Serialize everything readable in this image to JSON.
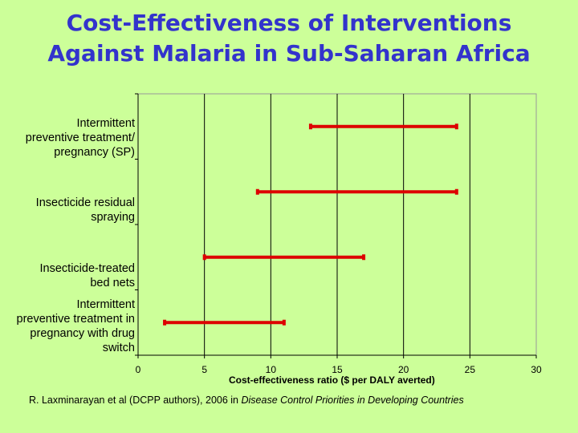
{
  "slide": {
    "title_line1": "Cost-Effectiveness of Interventions",
    "title_line2": "Against Malaria in Sub-Saharan Africa",
    "citation_pre": "R. Laxminarayan et al (DCPP authors), 2006 in ",
    "citation_source": "Disease Control Priorities in Developing Countries"
  },
  "colors": {
    "background": "#ccff99",
    "title": "#3333cc",
    "bar": "#dd0000"
  },
  "chart_data": {
    "type": "range-bar",
    "xlabel": "Cost-effectiveness ratio ($ per DALY averted)",
    "xlim": [
      0,
      30
    ],
    "xticks": [
      0,
      5,
      10,
      15,
      20,
      25,
      30
    ],
    "grid": "vertical",
    "categories": [
      "Intermittent preventive treatment/ pregnancy (SP)",
      "Insecticide residual spraying",
      "Insecticide-treated bed nets",
      "Intermittent preventive treatment in pregnancy with drug switch"
    ],
    "category_lines": [
      [
        "Intermittent",
        "preventive treatment/",
        "pregnancy (SP)"
      ],
      [
        "Insecticide residual",
        "spraying"
      ],
      [
        "Insecticide-treated",
        "bed nets"
      ],
      [
        "Intermittent",
        "preventive treatment in",
        "pregnancy with drug",
        "switch"
      ]
    ],
    "ranges": [
      {
        "low": 13,
        "high": 24
      },
      {
        "low": 9,
        "high": 24
      },
      {
        "low": 5,
        "high": 17
      },
      {
        "low": 2,
        "high": 11
      }
    ]
  }
}
